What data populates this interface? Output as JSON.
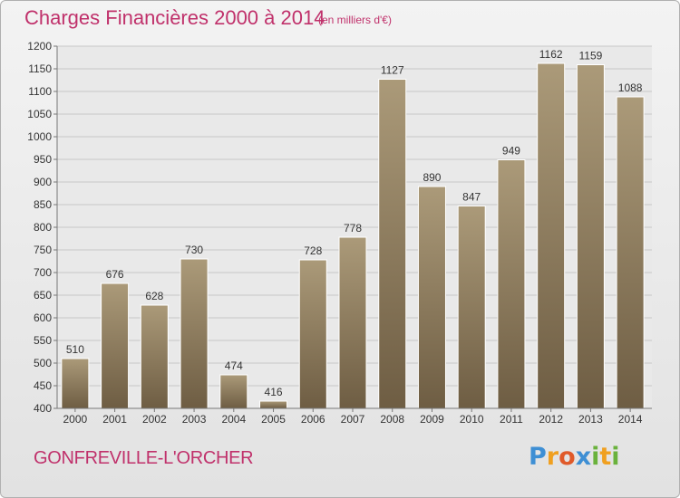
{
  "header": {
    "title": "Charges Financières 2000 à 2014",
    "subtitle": "(en milliers d'€)"
  },
  "footer": {
    "town": "GONFREVILLE-L'ORCHER",
    "logo_text": "Proxiti"
  },
  "colors": {
    "title": "#c0316b",
    "bar_top": "#ab9a79",
    "bar_bottom": "#6e5d43"
  },
  "chart_data": {
    "type": "bar",
    "categories": [
      "2000",
      "2001",
      "2002",
      "2003",
      "2004",
      "2005",
      "2006",
      "2007",
      "2008",
      "2009",
      "2010",
      "2011",
      "2012",
      "2013",
      "2014"
    ],
    "values": [
      510,
      676,
      628,
      730,
      474,
      416,
      728,
      778,
      1127,
      890,
      847,
      949,
      1162,
      1159,
      1088
    ],
    "title": "Charges Financières 2000 à 2014",
    "ylim": [
      400,
      1200
    ],
    "yticks": [
      400,
      450,
      500,
      550,
      600,
      650,
      700,
      750,
      800,
      850,
      900,
      950,
      1000,
      1050,
      1100,
      1150,
      1200
    ],
    "grid": true
  }
}
